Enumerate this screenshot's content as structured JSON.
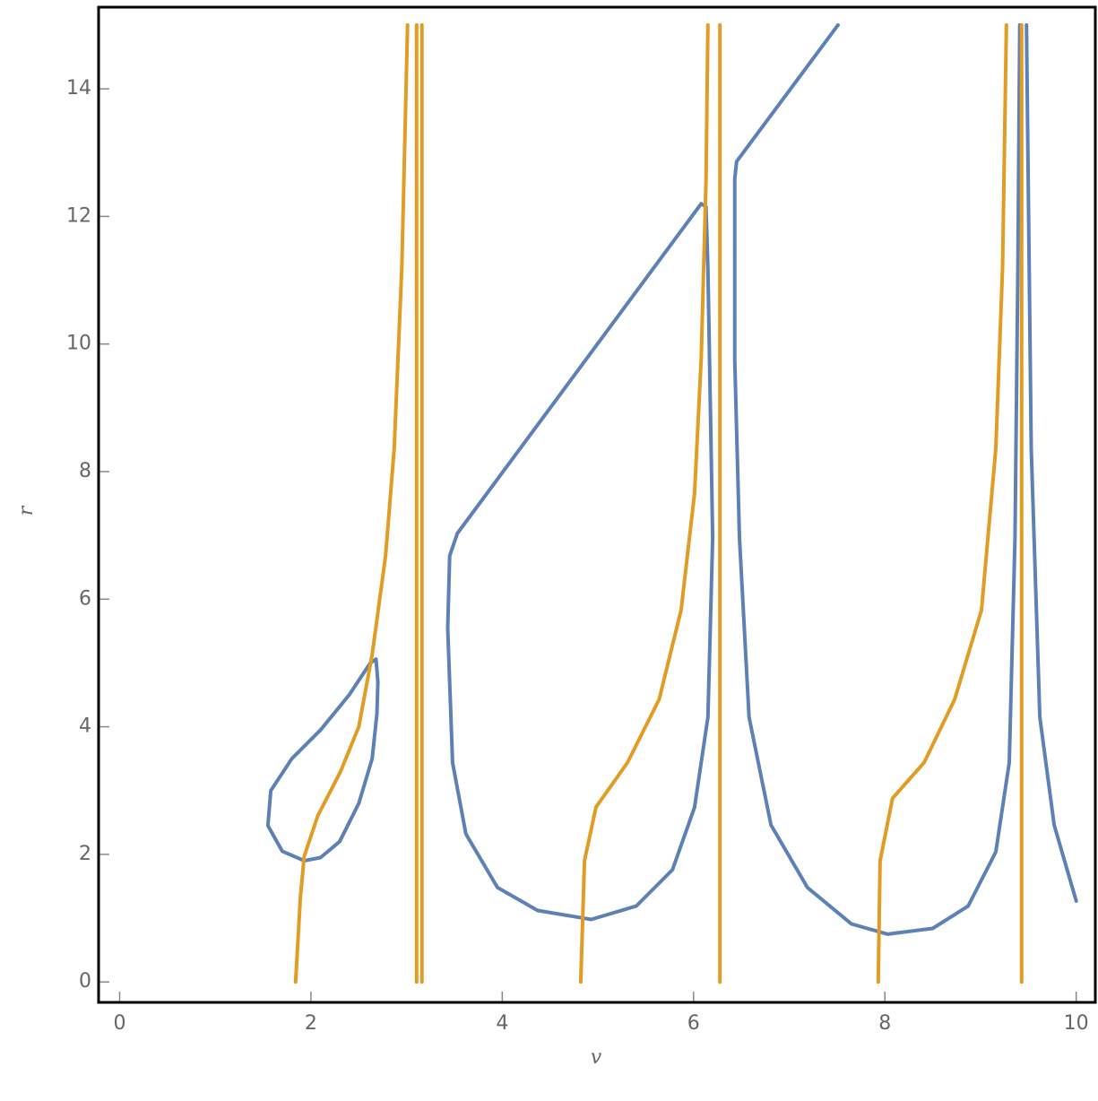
{
  "chart_data": {
    "type": "line",
    "x_label": "v",
    "y_label": "r",
    "xlim": [
      -0.22,
      10.2
    ],
    "ylim": [
      -0.32,
      15.28
    ],
    "xticks": [
      0,
      2,
      4,
      6,
      8,
      10
    ],
    "yticks": [
      0,
      2,
      4,
      6,
      8,
      10,
      12,
      14
    ],
    "series": [
      {
        "color": "#5e81b5",
        "x": [
          2.68,
          2.7,
          2.69,
          2.64,
          2.5,
          2.3,
          2.1,
          1.93,
          1.7,
          1.55,
          1.58,
          1.8,
          2.1,
          2.4,
          2.62,
          2.68,
          null,
          6.13,
          6.15,
          6.2,
          6.15,
          6.01,
          5.78,
          5.4,
          4.93,
          4.37,
          3.95,
          3.62,
          3.48,
          3.43,
          3.45,
          3.53,
          6.08,
          6.13,
          null,
          7.51,
          6.45,
          6.43,
          6.43,
          6.48,
          6.58,
          6.81,
          7.19,
          7.65,
          8.03,
          8.5,
          8.87,
          9.16,
          9.3,
          9.36,
          9.39,
          9.41,
          null,
          9.48,
          9.53,
          9.62,
          9.77,
          10.0
        ],
        "values": [
          5.06,
          4.7,
          4.2,
          3.5,
          2.8,
          2.2,
          1.95,
          1.9,
          2.05,
          2.45,
          3.0,
          3.5,
          3.95,
          4.5,
          5.0,
          5.06,
          null,
          12.15,
          11.18,
          6.96,
          4.15,
          2.74,
          1.76,
          1.19,
          0.98,
          1.12,
          1.48,
          2.32,
          3.44,
          5.55,
          6.68,
          7.03,
          12.2,
          12.15,
          null,
          15,
          12.86,
          12.58,
          9.77,
          6.96,
          4.15,
          2.46,
          1.48,
          0.91,
          0.75,
          0.84,
          1.19,
          2.04,
          3.44,
          6.96,
          11.18,
          15,
          null,
          15,
          8.36,
          4.15,
          2.46,
          1.27
        ]
      },
      {
        "color": "#e19c24",
        "x": [
          1.84,
          1.89,
          1.93,
          2.07,
          2.31,
          2.5,
          2.64,
          2.78,
          2.87,
          2.95,
          3.01,
          null,
          3.105,
          3.105,
          null,
          3.16,
          3.16,
          null,
          4.82,
          4.86,
          4.98,
          5.31,
          5.64,
          5.87,
          6.01,
          6.08,
          6.13,
          6.15,
          null,
          6.276,
          6.276,
          null,
          7.93,
          7.95,
          8.08,
          8.41,
          8.73,
          9.01,
          9.16,
          9.23,
          9.27,
          null,
          9.43,
          9.43
        ],
        "values": [
          0,
          1.34,
          1.97,
          2.6,
          3.3,
          4.0,
          5.13,
          6.68,
          8.36,
          11.2,
          15,
          null,
          0,
          15,
          null,
          0,
          15,
          null,
          0,
          1.9,
          2.74,
          3.44,
          4.43,
          5.83,
          7.66,
          9.77,
          12.58,
          15,
          null,
          0,
          15,
          null,
          0,
          1.9,
          2.88,
          3.44,
          4.43,
          5.83,
          8.36,
          11.18,
          15,
          null,
          0,
          15
        ]
      }
    ]
  }
}
